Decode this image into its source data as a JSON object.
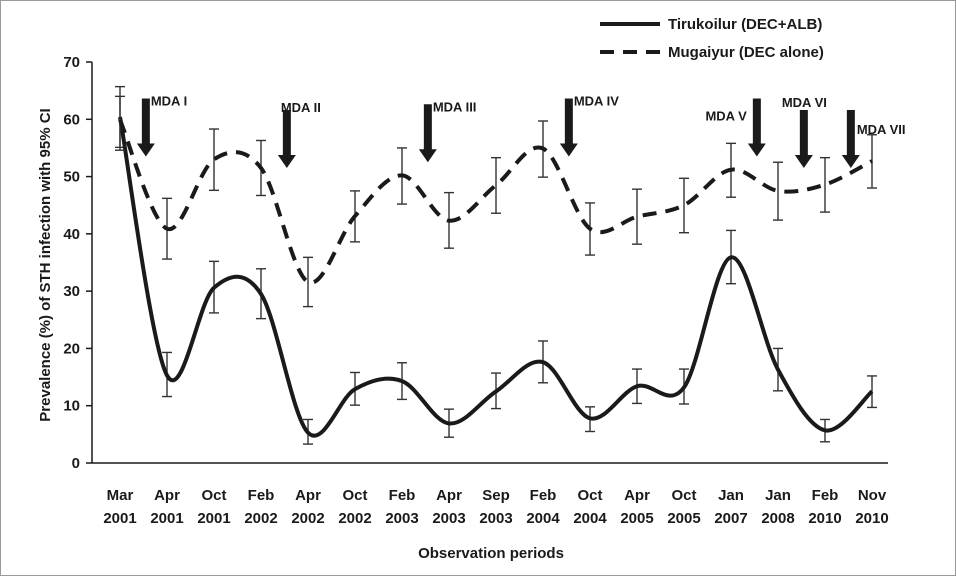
{
  "chart_data": {
    "type": "line",
    "xlabel": "Observation periods",
    "ylabel": "Prevalence (%)  of STH infection with 95% CI",
    "ylim": [
      0,
      70
    ],
    "yticks": [
      0,
      10,
      20,
      30,
      40,
      50,
      60,
      70
    ],
    "grid": false,
    "legend_position": "top-right",
    "categories": [
      [
        "Mar",
        "2001"
      ],
      [
        "Apr",
        "2001"
      ],
      [
        "Oct",
        "2001"
      ],
      [
        "Feb",
        "2002"
      ],
      [
        "Apr",
        "2002"
      ],
      [
        "Oct",
        "2002"
      ],
      [
        "Feb",
        "2003"
      ],
      [
        "Apr",
        "2003"
      ],
      [
        "Sep",
        "2003"
      ],
      [
        "Feb",
        "2004"
      ],
      [
        "Oct",
        "2004"
      ],
      [
        "Apr",
        "2005"
      ],
      [
        "Oct",
        "2005"
      ],
      [
        "Jan",
        "2007"
      ],
      [
        "Jan",
        "2008"
      ],
      [
        "Feb",
        "2010"
      ],
      [
        "Nov",
        "2010"
      ]
    ],
    "series": [
      {
        "name": "Tirukoilur (DEC+ALB)",
        "style": "solid",
        "color": "#1a1a1a",
        "values": [
          60.4,
          15.3,
          30.6,
          29.5,
          5.3,
          12.9,
          14.3,
          6.9,
          12.5,
          17.6,
          7.8,
          13.4,
          13.2,
          35.9,
          16.3,
          5.7,
          12.5
        ],
        "ci_low": [
          55.1,
          11.6,
          26.2,
          25.2,
          3.3,
          10.1,
          11.1,
          4.5,
          9.5,
          14.0,
          5.5,
          10.4,
          10.3,
          31.3,
          12.6,
          3.7,
          9.7
        ],
        "ci_high": [
          65.7,
          19.3,
          35.2,
          33.9,
          7.6,
          15.8,
          17.5,
          9.4,
          15.7,
          21.3,
          9.8,
          16.4,
          16.4,
          40.6,
          20.0,
          7.6,
          15.2
        ]
      },
      {
        "name": "Mugaiyur (DEC alone)",
        "style": "dashed",
        "color": "#1a1a1a",
        "values": [
          59.9,
          40.9,
          53.0,
          51.5,
          31.6,
          43.1,
          50.2,
          42.3,
          48.5,
          54.9,
          40.9,
          43.0,
          45.0,
          51.2,
          47.5,
          48.6,
          52.7
        ],
        "ci_low": [
          54.6,
          35.6,
          47.6,
          46.7,
          27.3,
          38.6,
          45.2,
          37.5,
          43.6,
          49.9,
          36.3,
          38.2,
          40.2,
          46.4,
          42.4,
          43.8,
          48.0
        ],
        "ci_high": [
          64.0,
          46.2,
          58.3,
          56.3,
          35.9,
          47.5,
          55.0,
          47.2,
          53.3,
          59.7,
          45.4,
          47.8,
          49.7,
          55.8,
          52.5,
          53.3,
          57.3
        ]
      }
    ],
    "annotations": [
      {
        "label": "MDA I",
        "after_index": 0,
        "arrow_tip_value": 53.5
      },
      {
        "label": "MDA II",
        "after_index": 3,
        "arrow_tip_value": 51.5
      },
      {
        "label": "MDA III",
        "after_index": 6,
        "arrow_tip_value": 52.5
      },
      {
        "label": "MDA IV",
        "after_index": 9,
        "arrow_tip_value": 53.5
      },
      {
        "label": "MDA V",
        "after_index": 13,
        "arrow_tip_value": 53.5
      },
      {
        "label": "MDA VI",
        "after_index": 14,
        "arrow_tip_value": 51.5
      },
      {
        "label": "MDA VII",
        "after_index": 15,
        "arrow_tip_value": 51.5
      }
    ]
  }
}
